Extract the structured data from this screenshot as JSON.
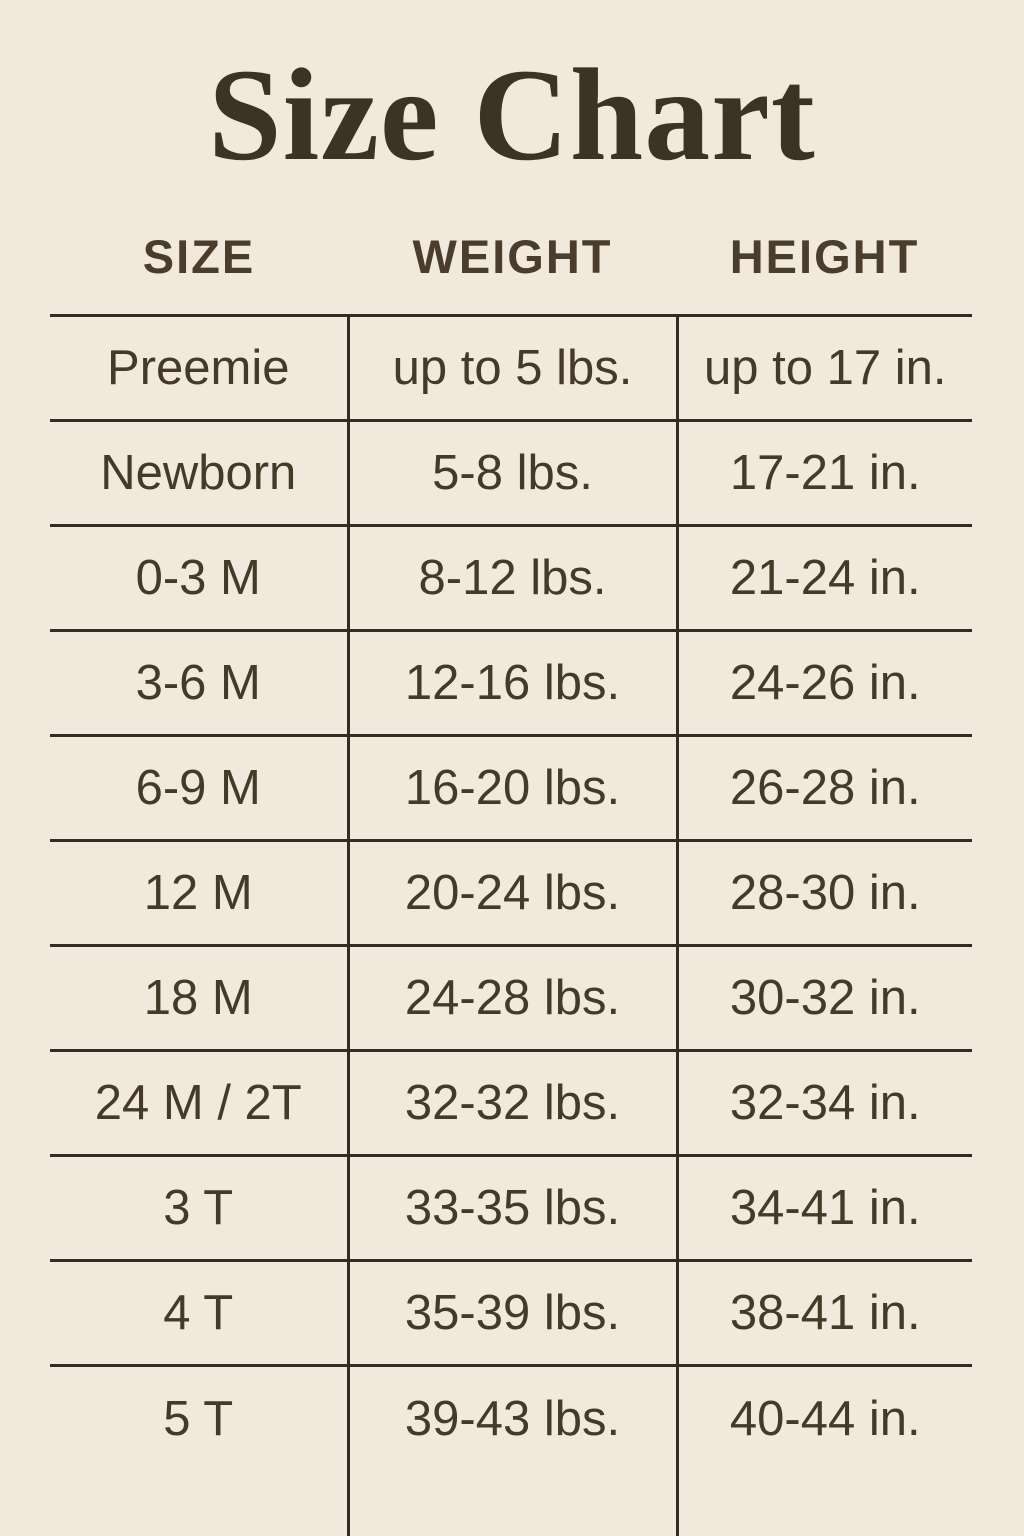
{
  "title": "Size Chart",
  "colors": {
    "background": "#f2e9dd",
    "text": "#453928",
    "title": "#3d3226",
    "line": "#332c22"
  },
  "table": {
    "headers": [
      "SIZE",
      "WEIGHT",
      "HEIGHT"
    ],
    "rows": [
      {
        "size": "Preemie",
        "weight": "up to 5 lbs.",
        "height": "up to 17 in."
      },
      {
        "size": "Newborn",
        "weight": "5-8 lbs.",
        "height": "17-21 in."
      },
      {
        "size": "0-3 M",
        "weight": "8-12 lbs.",
        "height": "21-24 in."
      },
      {
        "size": "3-6 M",
        "weight": "12-16 lbs.",
        "height": "24-26 in."
      },
      {
        "size": "6-9 M",
        "weight": "16-20 lbs.",
        "height": "26-28 in."
      },
      {
        "size": "12 M",
        "weight": "20-24 lbs.",
        "height": "28-30 in."
      },
      {
        "size": "18 M",
        "weight": "24-28 lbs.",
        "height": "30-32 in."
      },
      {
        "size": "24 M / 2T",
        "weight": "32-32 lbs.",
        "height": "32-34 in."
      },
      {
        "size": "3 T",
        "weight": "33-35 lbs.",
        "height": "34-41 in."
      },
      {
        "size": "4 T",
        "weight": "35-39 lbs.",
        "height": "38-41 in."
      },
      {
        "size": "5 T",
        "weight": "39-43 lbs.",
        "height": "40-44 in."
      }
    ]
  }
}
